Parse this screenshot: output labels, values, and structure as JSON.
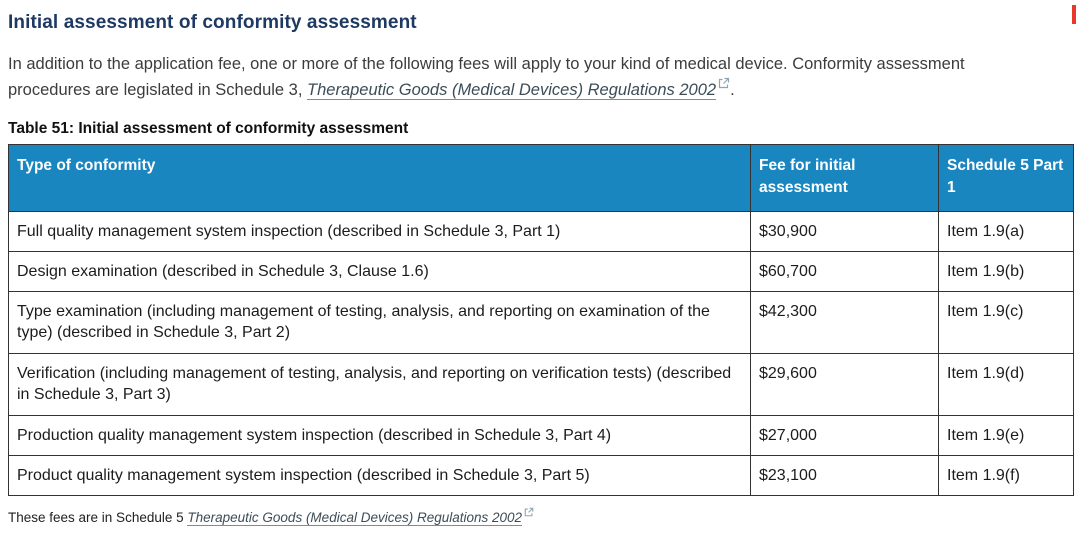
{
  "heading": "Initial assessment of conformity assessment",
  "intro": {
    "before_link": "In addition to the application fee, one or more of the following fees will apply to your kind of medical device. Conformity assessment procedures are legislated in Schedule 3, ",
    "link": "Therapeutic Goods (Medical Devices) Regulations 2002",
    "after_link": "."
  },
  "table": {
    "caption": "Table 51: Initial assessment of conformity assessment",
    "headers": [
      "Type of conformity",
      "Fee for initial assessment",
      "Schedule 5 Part 1"
    ],
    "rows": [
      {
        "type": "Full quality management system inspection (described in Schedule 3, Part 1)",
        "fee": "$30,900",
        "item": "Item 1.9(a)"
      },
      {
        "type": "Design examination (described in Schedule 3, Clause 1.6)",
        "fee": "$60,700",
        "item": "Item 1.9(b)"
      },
      {
        "type": "Type examination (including management of testing, analysis, and reporting on examination of the type) (described in Schedule 3, Part 2)",
        "fee": "$42,300",
        "item": "Item 1.9(c)"
      },
      {
        "type": "Verification (including management of testing, analysis, and reporting on verification tests) (described in Schedule 3, Part 3)",
        "fee": "$29,600",
        "item": "Item 1.9(d)"
      },
      {
        "type": "Production quality management system inspection (described in Schedule 3, Part 4)",
        "fee": "$27,000",
        "item": "Item 1.9(e)"
      },
      {
        "type": "Product quality management system inspection (described in Schedule 3, Part 5)",
        "fee": "$23,100",
        "item": "Item 1.9(f)"
      }
    ]
  },
  "footnote": {
    "before_link": "These fees are in Schedule 5 ",
    "link": "Therapeutic Goods (Medical Devices) Regulations 2002"
  },
  "icons": {
    "external_link": "external-link-icon"
  },
  "colors": {
    "heading": "#1e3a63",
    "table_header_bg": "#1986c0",
    "table_header_text": "#ffffff",
    "body_text": "#3c3c3c",
    "cell_text": "#1c1c1c",
    "table_border": "#333333",
    "link_text": "#3d4d57",
    "link_underline": "#44a3b6",
    "external_icon": "#8fa5b2",
    "red_marker": "#e8382b"
  }
}
